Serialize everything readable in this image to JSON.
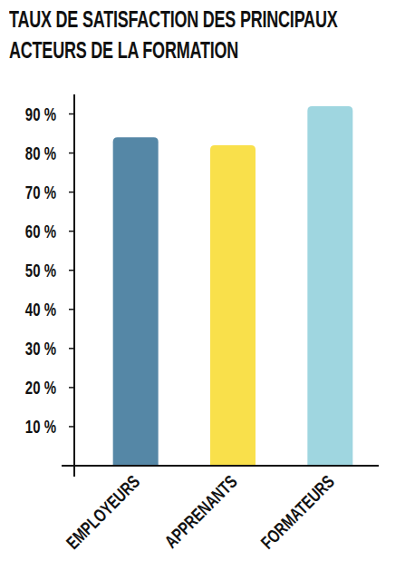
{
  "chart_data": {
    "type": "bar",
    "title": "TAUX DE SATISFACTION DES PRINCIPAUX ACTEURS DE LA FORMATION",
    "categories": [
      "EMPLOYEURS",
      "APPRENANTS",
      "FORMATEURS"
    ],
    "values": [
      84,
      82,
      92
    ],
    "colors": [
      "#5587a6",
      "#f9e04b",
      "#9fd6e0"
    ],
    "ylim": [
      0,
      95
    ],
    "yticks": [
      {
        "value": 10,
        "label": "10 %"
      },
      {
        "value": 20,
        "label": "20 %"
      },
      {
        "value": 30,
        "label": "30 %"
      },
      {
        "value": 40,
        "label": "40 %"
      },
      {
        "value": 50,
        "label": "50 %"
      },
      {
        "value": 60,
        "label": "60 %"
      },
      {
        "value": 70,
        "label": "70 %"
      },
      {
        "value": 80,
        "label": "80 %"
      },
      {
        "value": 90,
        "label": "90 %"
      }
    ],
    "grid": false
  }
}
